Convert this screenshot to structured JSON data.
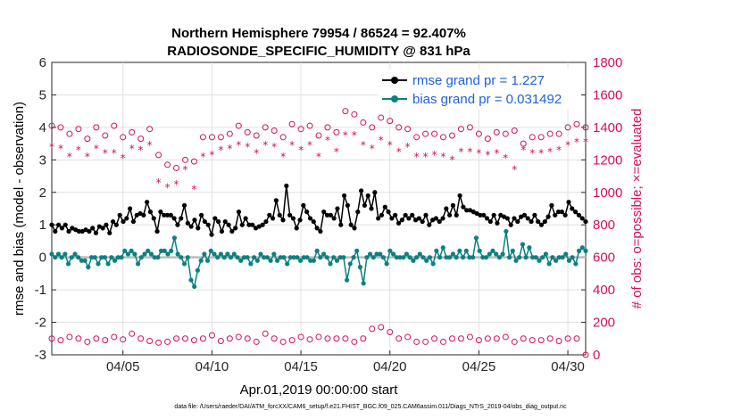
{
  "chart_data": {
    "type": "line",
    "title_line1": "Northern Hemisphere 79954 / 86524 = 92.407%",
    "title_line2": "RADIOSONDE_SPECIFIC_HUMIDITY @ 831 hPa",
    "xlabel": "Apr.01,2019 00:00:00 start",
    "ylabel_left": "rmse and bias (model - observation)",
    "ylabel_right": "# of obs: o=possible; ×=evaluated",
    "xlim": [
      1,
      31
    ],
    "ylim_left": [
      -3,
      6
    ],
    "ylim_right": [
      0,
      1800
    ],
    "x_ticks": [
      5,
      10,
      15,
      20,
      25,
      30
    ],
    "x_tick_labels": [
      "04/05",
      "04/10",
      "04/15",
      "04/20",
      "04/25",
      "04/30"
    ],
    "y_left_ticks": [
      "-3",
      "-2",
      "-1",
      "0",
      "1",
      "2",
      "3",
      "4",
      "5",
      "6"
    ],
    "y_right_ticks": [
      "0",
      "200",
      "400",
      "600",
      "800",
      "1000",
      "1200",
      "1400",
      "1600",
      "1800"
    ],
    "colors": {
      "rmse": "#000000",
      "bias": "#0e8080",
      "obs": "#d01060",
      "zero_line": "#bbbbbb",
      "legend_text": "#1f5fe0"
    },
    "footnote": "data file: /Users/raeder/DAI/ATM_forcXX/CAM6_setup/f.e21.FHIST_BGC.f09_025.CAM6assim.011/Diags_NTrS_2019-04/obs_diag_output.nc",
    "series": [
      {
        "name": "rmse grand pr = 1.227",
        "axis": "left",
        "values": [
          1.0,
          0.8,
          1.0,
          0.9,
          1.0,
          0.8,
          0.9,
          0.85,
          0.8,
          0.8,
          0.85,
          0.8,
          0.9,
          0.75,
          0.95,
          0.9,
          1.0,
          0.75,
          1.1,
          1.0,
          1.3,
          1.1,
          1.2,
          1.5,
          1.1,
          1.3,
          1.35,
          1.3,
          1.7,
          1.4,
          1.2,
          0.8,
          1.4,
          1.3,
          1.3,
          1.3,
          1.2,
          1.0,
          1.2,
          1.6,
          1.05,
          0.95,
          1.15,
          0.9,
          1.3,
          1.1,
          1.0,
          0.7,
          1.2,
          1.1,
          0.8,
          1.1,
          1.0,
          0.8,
          0.9,
          1.4,
          1.0,
          1.2,
          1.0,
          1.0,
          0.9,
          0.95,
          1.0,
          1.1,
          1.3,
          1.2,
          1.75,
          1.3,
          1.15,
          2.2,
          1.3,
          1.2,
          0.9,
          1.15,
          1.6,
          1.4,
          1.2,
          1.1,
          0.9,
          0.8,
          1.4,
          1.3,
          1.3,
          1.2,
          1.5,
          1.0,
          1.9,
          1.6,
          1.0,
          0.9,
          1.4,
          2.05,
          1.6,
          1.9,
          1.5,
          2.0,
          1.2,
          1.3,
          1.55,
          1.4,
          1.2,
          1.3,
          1.05,
          1.15,
          1.3,
          1.2,
          1.3,
          1.15,
          1.2,
          1.1,
          1.3,
          1.0,
          1.15,
          1.2,
          1.1,
          1.2,
          1.5,
          1.3,
          1.6,
          1.3,
          1.9,
          1.55,
          1.45,
          1.45,
          1.4,
          1.35,
          1.3,
          1.3,
          1.2,
          1.1,
          1.3,
          1.05,
          1.3,
          1.25,
          1.2,
          1.0,
          1.2,
          1.1,
          1.25,
          1.3,
          1.2,
          1.1,
          1.3,
          1.1,
          1.0,
          1.1,
          1.25,
          1.6,
          1.3,
          1.4,
          1.4,
          1.3,
          1.7,
          1.5,
          1.4,
          1.3,
          1.2,
          1.1
        ]
      },
      {
        "name": "bias grand pr = 0.031492",
        "axis": "left",
        "values": [
          0.1,
          0.0,
          0.1,
          0.0,
          0.1,
          -0.2,
          0.0,
          0.1,
          0.0,
          -0.1,
          -0.1,
          -0.3,
          0.0,
          0.0,
          -0.2,
          0.0,
          0.0,
          -0.2,
          0.0,
          -0.1,
          0.0,
          0.0,
          0.2,
          0.1,
          0.2,
          0.1,
          -0.2,
          0.0,
          0.1,
          0.2,
          0.1,
          0.0,
          0.0,
          0.2,
          0.2,
          0.1,
          0.2,
          0.6,
          0.1,
          0.0,
          -0.2,
          0.0,
          -0.7,
          -0.9,
          -0.4,
          -0.1,
          0.1,
          -0.1,
          0.2,
          0.1,
          0.0,
          0.1,
          0.0,
          0.1,
          0.0,
          0.1,
          0.0,
          -0.1,
          0.0,
          0.0,
          -0.2,
          0.0,
          -0.1,
          0.1,
          0.0,
          0.0,
          -0.1,
          0.1,
          -0.1,
          0.0,
          0.0,
          -0.2,
          0.0,
          0.0,
          0.0,
          -0.1,
          0.0,
          0.0,
          -0.1,
          -0.1,
          0.2,
          0.0,
          0.1,
          0.0,
          -0.2,
          0.0,
          -0.1,
          0.0,
          0.0,
          -0.7,
          -0.2,
          0.0,
          0.2,
          -0.3,
          -0.8,
          0.0,
          0.1,
          0.0,
          0.1,
          0.1,
          0.0,
          -0.2,
          0.2,
          0.1,
          0.0,
          0.0,
          0.0,
          0.1,
          0.0,
          -0.1,
          0.0,
          0.1,
          0.0,
          -0.1,
          0.0,
          -0.2,
          0.2,
          0.0,
          0.3,
          0.0,
          0.0,
          0.1,
          0.0,
          0.2,
          0.0,
          0.2,
          0.0,
          0.0,
          0.6,
          0.2,
          0.0,
          0.0,
          0.1,
          0.2,
          0.1,
          0.0,
          0.1,
          0.8,
          0.0,
          0.2,
          -0.1,
          0.0,
          0.4,
          0.0,
          0.3,
          0.0,
          0.0,
          -0.1,
          0.0,
          0.1,
          -0.2,
          0.0,
          -0.1,
          0.0,
          0.0,
          0.1,
          -0.1,
          0.0,
          -0.2,
          0.2,
          0.3,
          0.2
        ]
      },
      {
        "name": "possible obs",
        "axis": "right",
        "marker": "o",
        "x": [
          1.0,
          1.5,
          2.0,
          2.5,
          3.0,
          3.5,
          4.0,
          4.5,
          5.0,
          5.5,
          6.0,
          6.5,
          7.0,
          7.5,
          8.0,
          8.5,
          9.0,
          9.5,
          10.0,
          10.5,
          11.0,
          11.5,
          12.0,
          12.5,
          13.0,
          13.5,
          14.0,
          14.5,
          15.0,
          15.5,
          16.0,
          16.5,
          17.0,
          17.5,
          18.0,
          18.5,
          19.0,
          19.5,
          20.0,
          20.5,
          21.0,
          21.5,
          22.0,
          22.5,
          23.0,
          23.5,
          24.0,
          24.5,
          25.0,
          25.5,
          26.0,
          26.5,
          27.0,
          27.5,
          28.0,
          28.5,
          29.0,
          29.5,
          30.0,
          30.5,
          31.0
        ],
        "values": [
          1410,
          1400,
          1360,
          1390,
          1330,
          1400,
          1350,
          1410,
          1340,
          1370,
          1330,
          1390,
          1230,
          1170,
          1150,
          1200,
          1190,
          1340,
          1340,
          1340,
          1360,
          1410,
          1370,
          1350,
          1400,
          1380,
          1340,
          1420,
          1390,
          1410,
          1350,
          1400,
          1370,
          1500,
          1480,
          1430,
          1400,
          1460,
          1440,
          1400,
          1390,
          1340,
          1360,
          1360,
          1340,
          1350,
          1390,
          1400,
          1360,
          1330,
          1370,
          1360,
          1380,
          1300,
          1340,
          1340,
          1360,
          1360,
          1400,
          1420,
          1400
        ]
      },
      {
        "name": "evaluated obs",
        "axis": "right",
        "marker": "*",
        "x": [
          1.0,
          1.5,
          2.0,
          2.5,
          3.0,
          3.5,
          4.0,
          4.5,
          5.0,
          5.5,
          6.0,
          6.5,
          7.0,
          7.5,
          8.0,
          8.5,
          9.0,
          9.5,
          10.0,
          10.5,
          11.0,
          11.5,
          12.0,
          12.5,
          13.0,
          13.5,
          14.0,
          14.5,
          15.0,
          15.5,
          16.0,
          16.5,
          17.0,
          17.5,
          18.0,
          18.5,
          19.0,
          19.5,
          20.0,
          20.5,
          21.0,
          21.5,
          22.0,
          22.5,
          23.0,
          23.5,
          24.0,
          24.5,
          25.0,
          25.5,
          26.0,
          26.5,
          27.0,
          27.5,
          28.0,
          28.5,
          29.0,
          29.5,
          30.0,
          30.5,
          31.0
        ],
        "values": [
          1290,
          1280,
          1230,
          1270,
          1230,
          1280,
          1250,
          1250,
          1220,
          1280,
          1270,
          1300,
          1070,
          1040,
          1060,
          1150,
          1030,
          1230,
          1240,
          1270,
          1280,
          1300,
          1290,
          1250,
          1300,
          1290,
          1230,
          1300,
          1270,
          1300,
          1230,
          1330,
          1260,
          1360,
          1360,
          1300,
          1280,
          1330,
          1300,
          1260,
          1290,
          1230,
          1230,
          1240,
          1230,
          1210,
          1260,
          1260,
          1250,
          1240,
          1250,
          1220,
          1150,
          1270,
          1250,
          1250,
          1260,
          1270,
          1300,
          1320,
          1320
        ]
      },
      {
        "name": "near-zero obs",
        "axis": "right",
        "marker": "o",
        "x": [
          1.0,
          1.5,
          2.0,
          2.5,
          3.0,
          3.5,
          4.0,
          4.5,
          5.0,
          5.5,
          6.0,
          6.5,
          7.0,
          7.5,
          8.0,
          8.5,
          9.0,
          9.5,
          10.0,
          10.5,
          11.0,
          11.5,
          12.0,
          12.5,
          13.0,
          13.5,
          14.0,
          14.5,
          15.0,
          15.5,
          16.0,
          16.5,
          17.0,
          17.5,
          18.0,
          18.5,
          19.0,
          19.5,
          20.0,
          20.5,
          21.0,
          21.5,
          22.0,
          22.5,
          23.0,
          23.5,
          24.0,
          24.5,
          25.0,
          25.5,
          26.0,
          26.5,
          27.0,
          27.5,
          28.0,
          28.5,
          29.0,
          29.5,
          30.0,
          30.5,
          31.0
        ],
        "values": [
          100,
          90,
          110,
          100,
          80,
          100,
          90,
          110,
          95,
          130,
          100,
          85,
          75,
          80,
          100,
          100,
          90,
          100,
          120,
          85,
          100,
          110,
          100,
          80,
          130,
          100,
          80,
          90,
          110,
          95,
          110,
          100,
          100,
          100,
          80,
          100,
          160,
          170,
          140,
          100,
          110,
          80,
          80,
          100,
          80,
          100,
          100,
          110,
          90,
          100,
          100,
          110,
          80,
          100,
          90,
          90,
          100,
          85,
          100,
          100,
          0
        ]
      }
    ]
  }
}
